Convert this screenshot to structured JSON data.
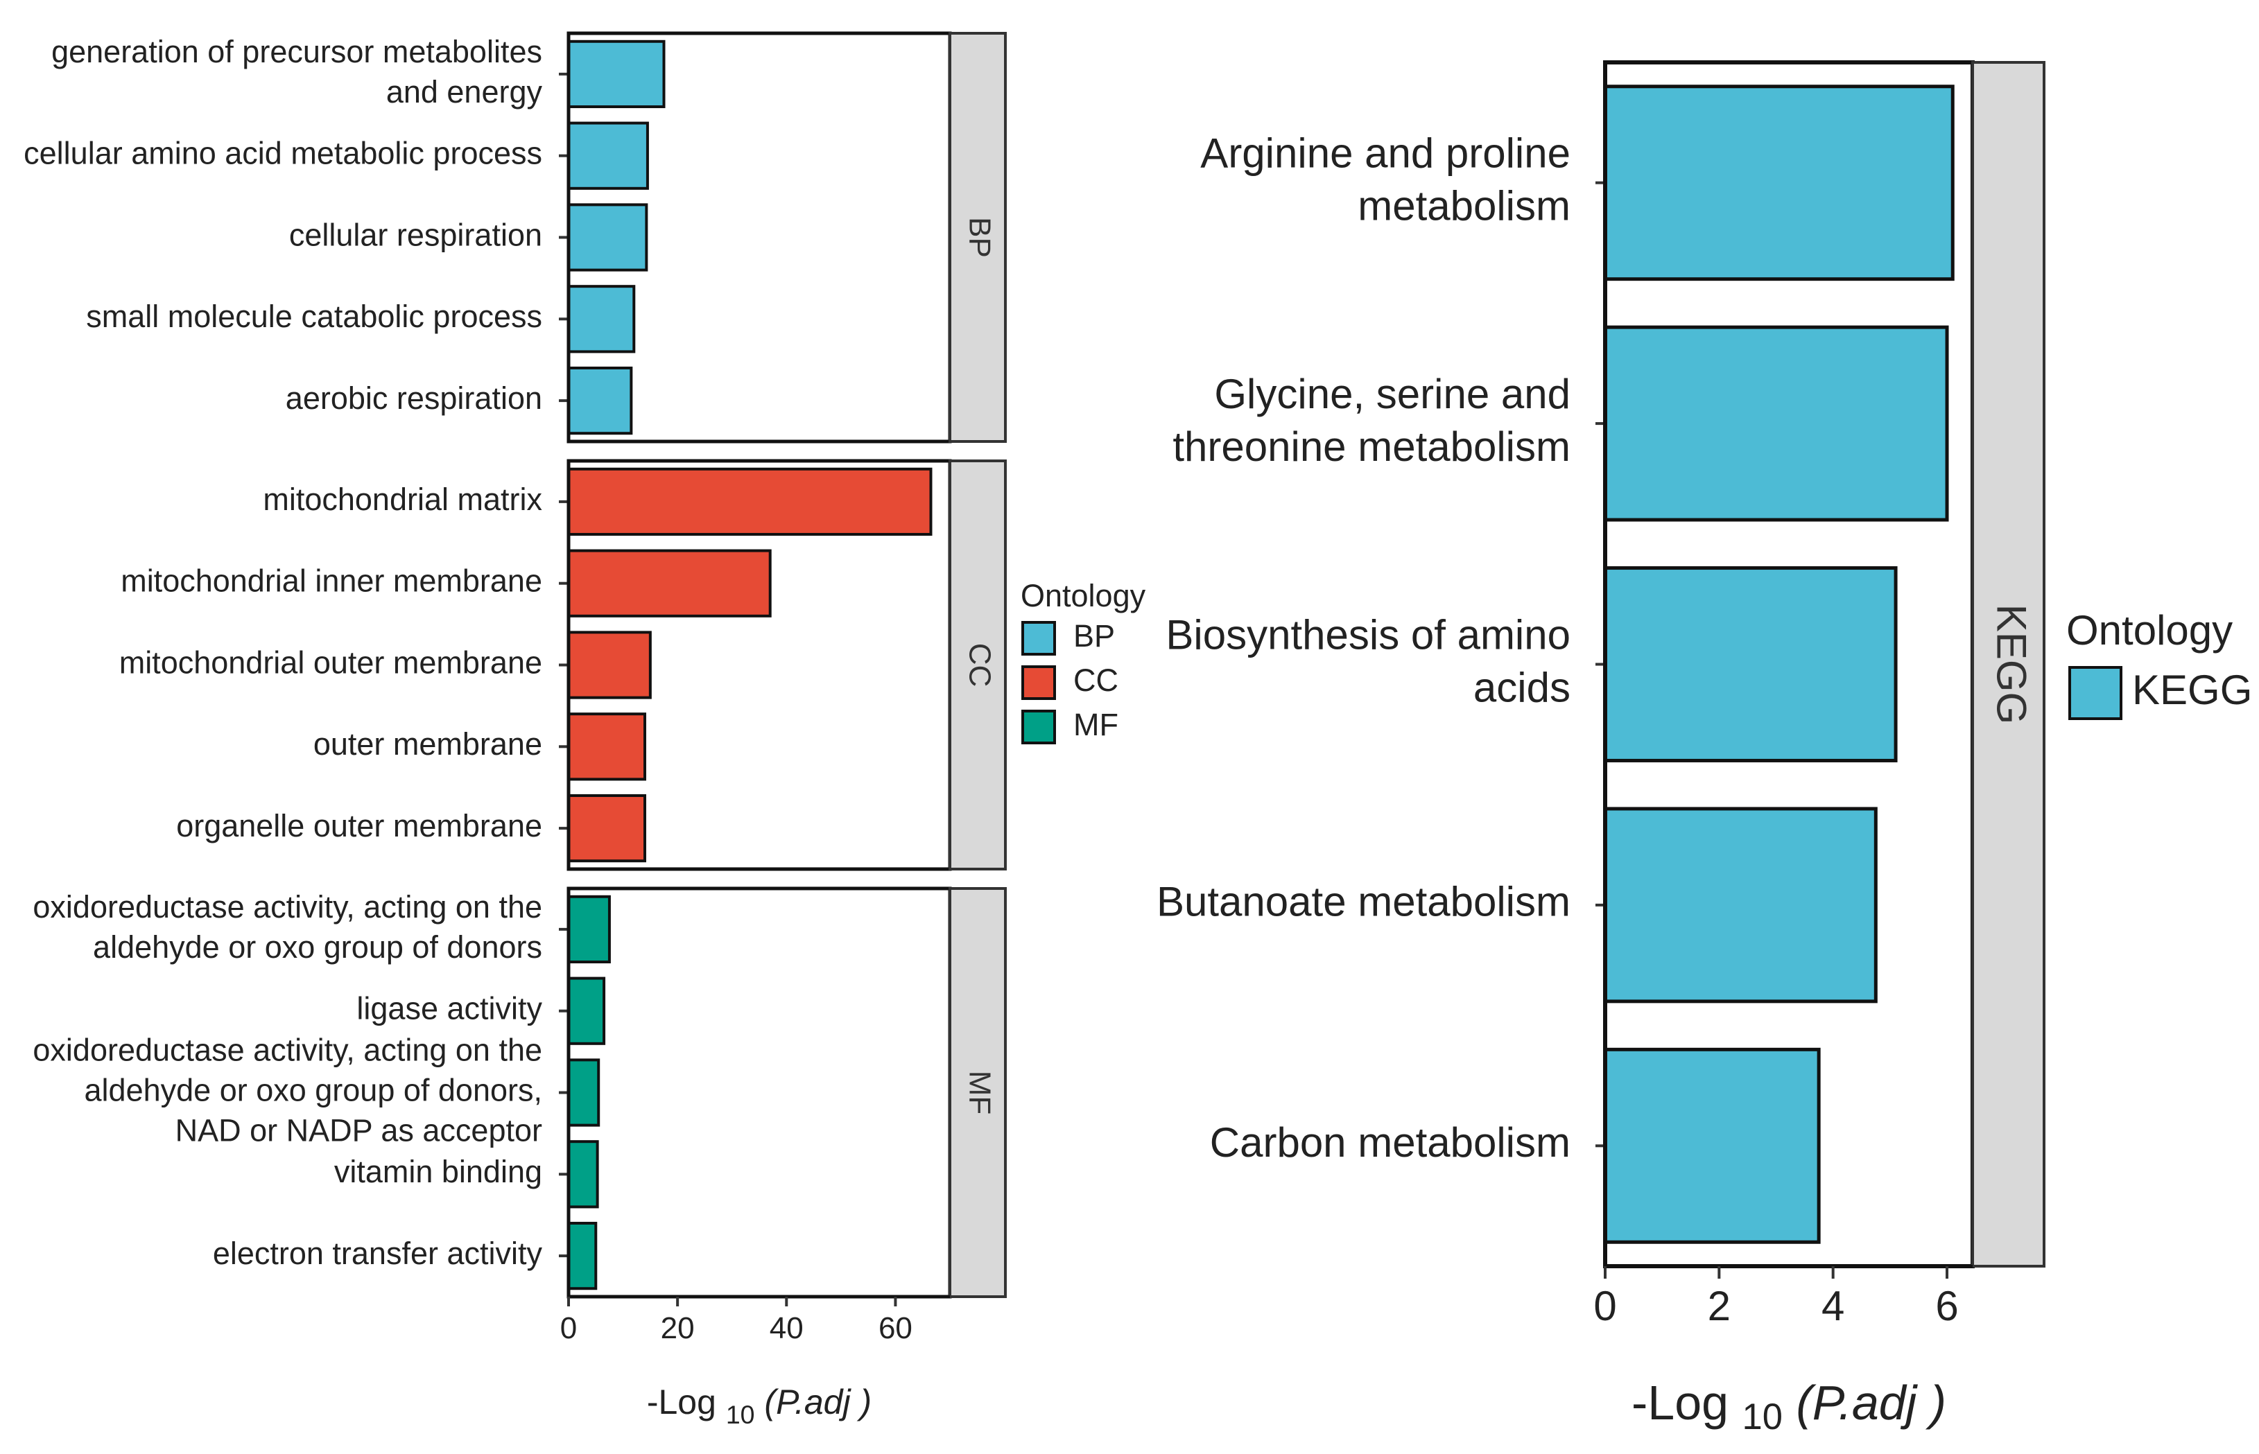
{
  "chart_data": [
    {
      "type": "bar",
      "orientation": "horizontal",
      "facets": [
        {
          "name": "BP",
          "color": "#4DBBD5",
          "categories": [
            [
              "generation of precursor metabolites",
              "and energy"
            ],
            [
              "cellular amino acid metabolic process"
            ],
            [
              "cellular respiration"
            ],
            [
              "small molecule catabolic process"
            ],
            [
              "aerobic respiration"
            ]
          ],
          "values": [
            17.5,
            14.5,
            14.3,
            12.0,
            11.5
          ]
        },
        {
          "name": "CC",
          "color": "#E64B35",
          "categories": [
            [
              "mitochondrial matrix"
            ],
            [
              "mitochondrial inner membrane"
            ],
            [
              "mitochondrial outer membrane"
            ],
            [
              "outer membrane"
            ],
            [
              "organelle outer membrane"
            ]
          ],
          "values": [
            66.5,
            37.0,
            15.0,
            14.0,
            14.0
          ]
        },
        {
          "name": "MF",
          "color": "#00A087",
          "categories": [
            [
              "oxidoreductase activity, acting on the",
              "aldehyde or oxo group of donors"
            ],
            [
              "ligase activity"
            ],
            [
              "oxidoreductase activity, acting on the",
              "aldehyde or oxo group of donors,",
              "NAD or NADP as acceptor"
            ],
            [
              "vitamin binding"
            ],
            [
              "electron transfer activity"
            ]
          ],
          "values": [
            7.5,
            6.5,
            5.5,
            5.3,
            5.0
          ]
        }
      ],
      "xlim": [
        0,
        70
      ],
      "xticks": [
        0,
        20,
        40,
        60
      ],
      "xlabel": {
        "main": "-Log",
        "sub": "10",
        "italic": "(P.adj )"
      },
      "legend": {
        "title": "Ontology",
        "position": "right",
        "items": [
          {
            "label": "BP",
            "color": "#4DBBD5"
          },
          {
            "label": "CC",
            "color": "#E64B35"
          },
          {
            "label": "MF",
            "color": "#00A087"
          }
        ]
      }
    },
    {
      "type": "bar",
      "orientation": "horizontal",
      "facets": [
        {
          "name": "KEGG",
          "color": "#4DBBD5",
          "categories": [
            [
              "Arginine and proline",
              "metabolism"
            ],
            [
              "Glycine, serine and",
              "threonine metabolism"
            ],
            [
              "Biosynthesis of amino",
              "acids"
            ],
            [
              "Butanoate metabolism"
            ],
            [
              "Carbon metabolism"
            ]
          ],
          "values": [
            6.1,
            6.0,
            5.1,
            4.75,
            3.75
          ]
        }
      ],
      "xlim": [
        0,
        6.45
      ],
      "xticks": [
        0,
        2,
        4,
        6
      ],
      "xlabel": {
        "main": "-Log",
        "sub": "10",
        "italic": "(P.adj )"
      },
      "legend": {
        "title": "Ontology",
        "position": "right",
        "items": [
          {
            "label": "KEGG",
            "color": "#4DBBD5"
          }
        ]
      }
    }
  ]
}
